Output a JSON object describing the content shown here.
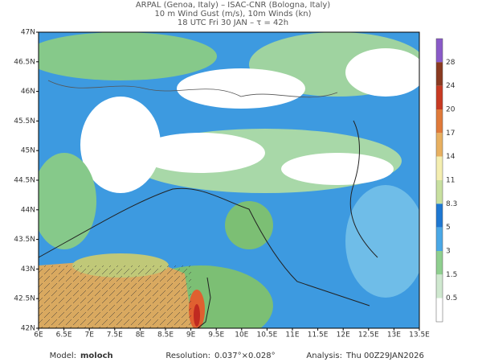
{
  "header": {
    "line1": "ARPAL (Genoa, Italy)  –  ISAC-CNR (Bologna, Italy)",
    "line2": "10 m Wind Gust (m/s), 10m Winds (kn)",
    "line3": "18 UTC Fri 30 JAN  –  τ = 42h"
  },
  "map": {
    "lat_labels": [
      "47N",
      "46.5N",
      "46N",
      "45.5N",
      "45N",
      "44.5N",
      "44N",
      "43.5N",
      "43N",
      "42.5N",
      "42N"
    ],
    "lon_labels": [
      "6E",
      "6.5E",
      "7E",
      "7.5E",
      "8E",
      "8.5E",
      "9E",
      "9.5E",
      "10E",
      "10.5E",
      "11E",
      "11.5E",
      "12E",
      "12.5E",
      "13E",
      "13.5E"
    ]
  },
  "colorbar": {
    "labels": [
      "28",
      "24",
      "20",
      "17",
      "14",
      "11",
      "8.3",
      "5",
      "3",
      "1.5",
      "0.5"
    ]
  },
  "footer": {
    "model_label": "Model:",
    "model": "moloch",
    "resolution_label": "Resolution:",
    "resolution": "0.037°×0.028°",
    "analysis_label": "Analysis:",
    "analysis": "Thu 00Z29JAN2026"
  }
}
